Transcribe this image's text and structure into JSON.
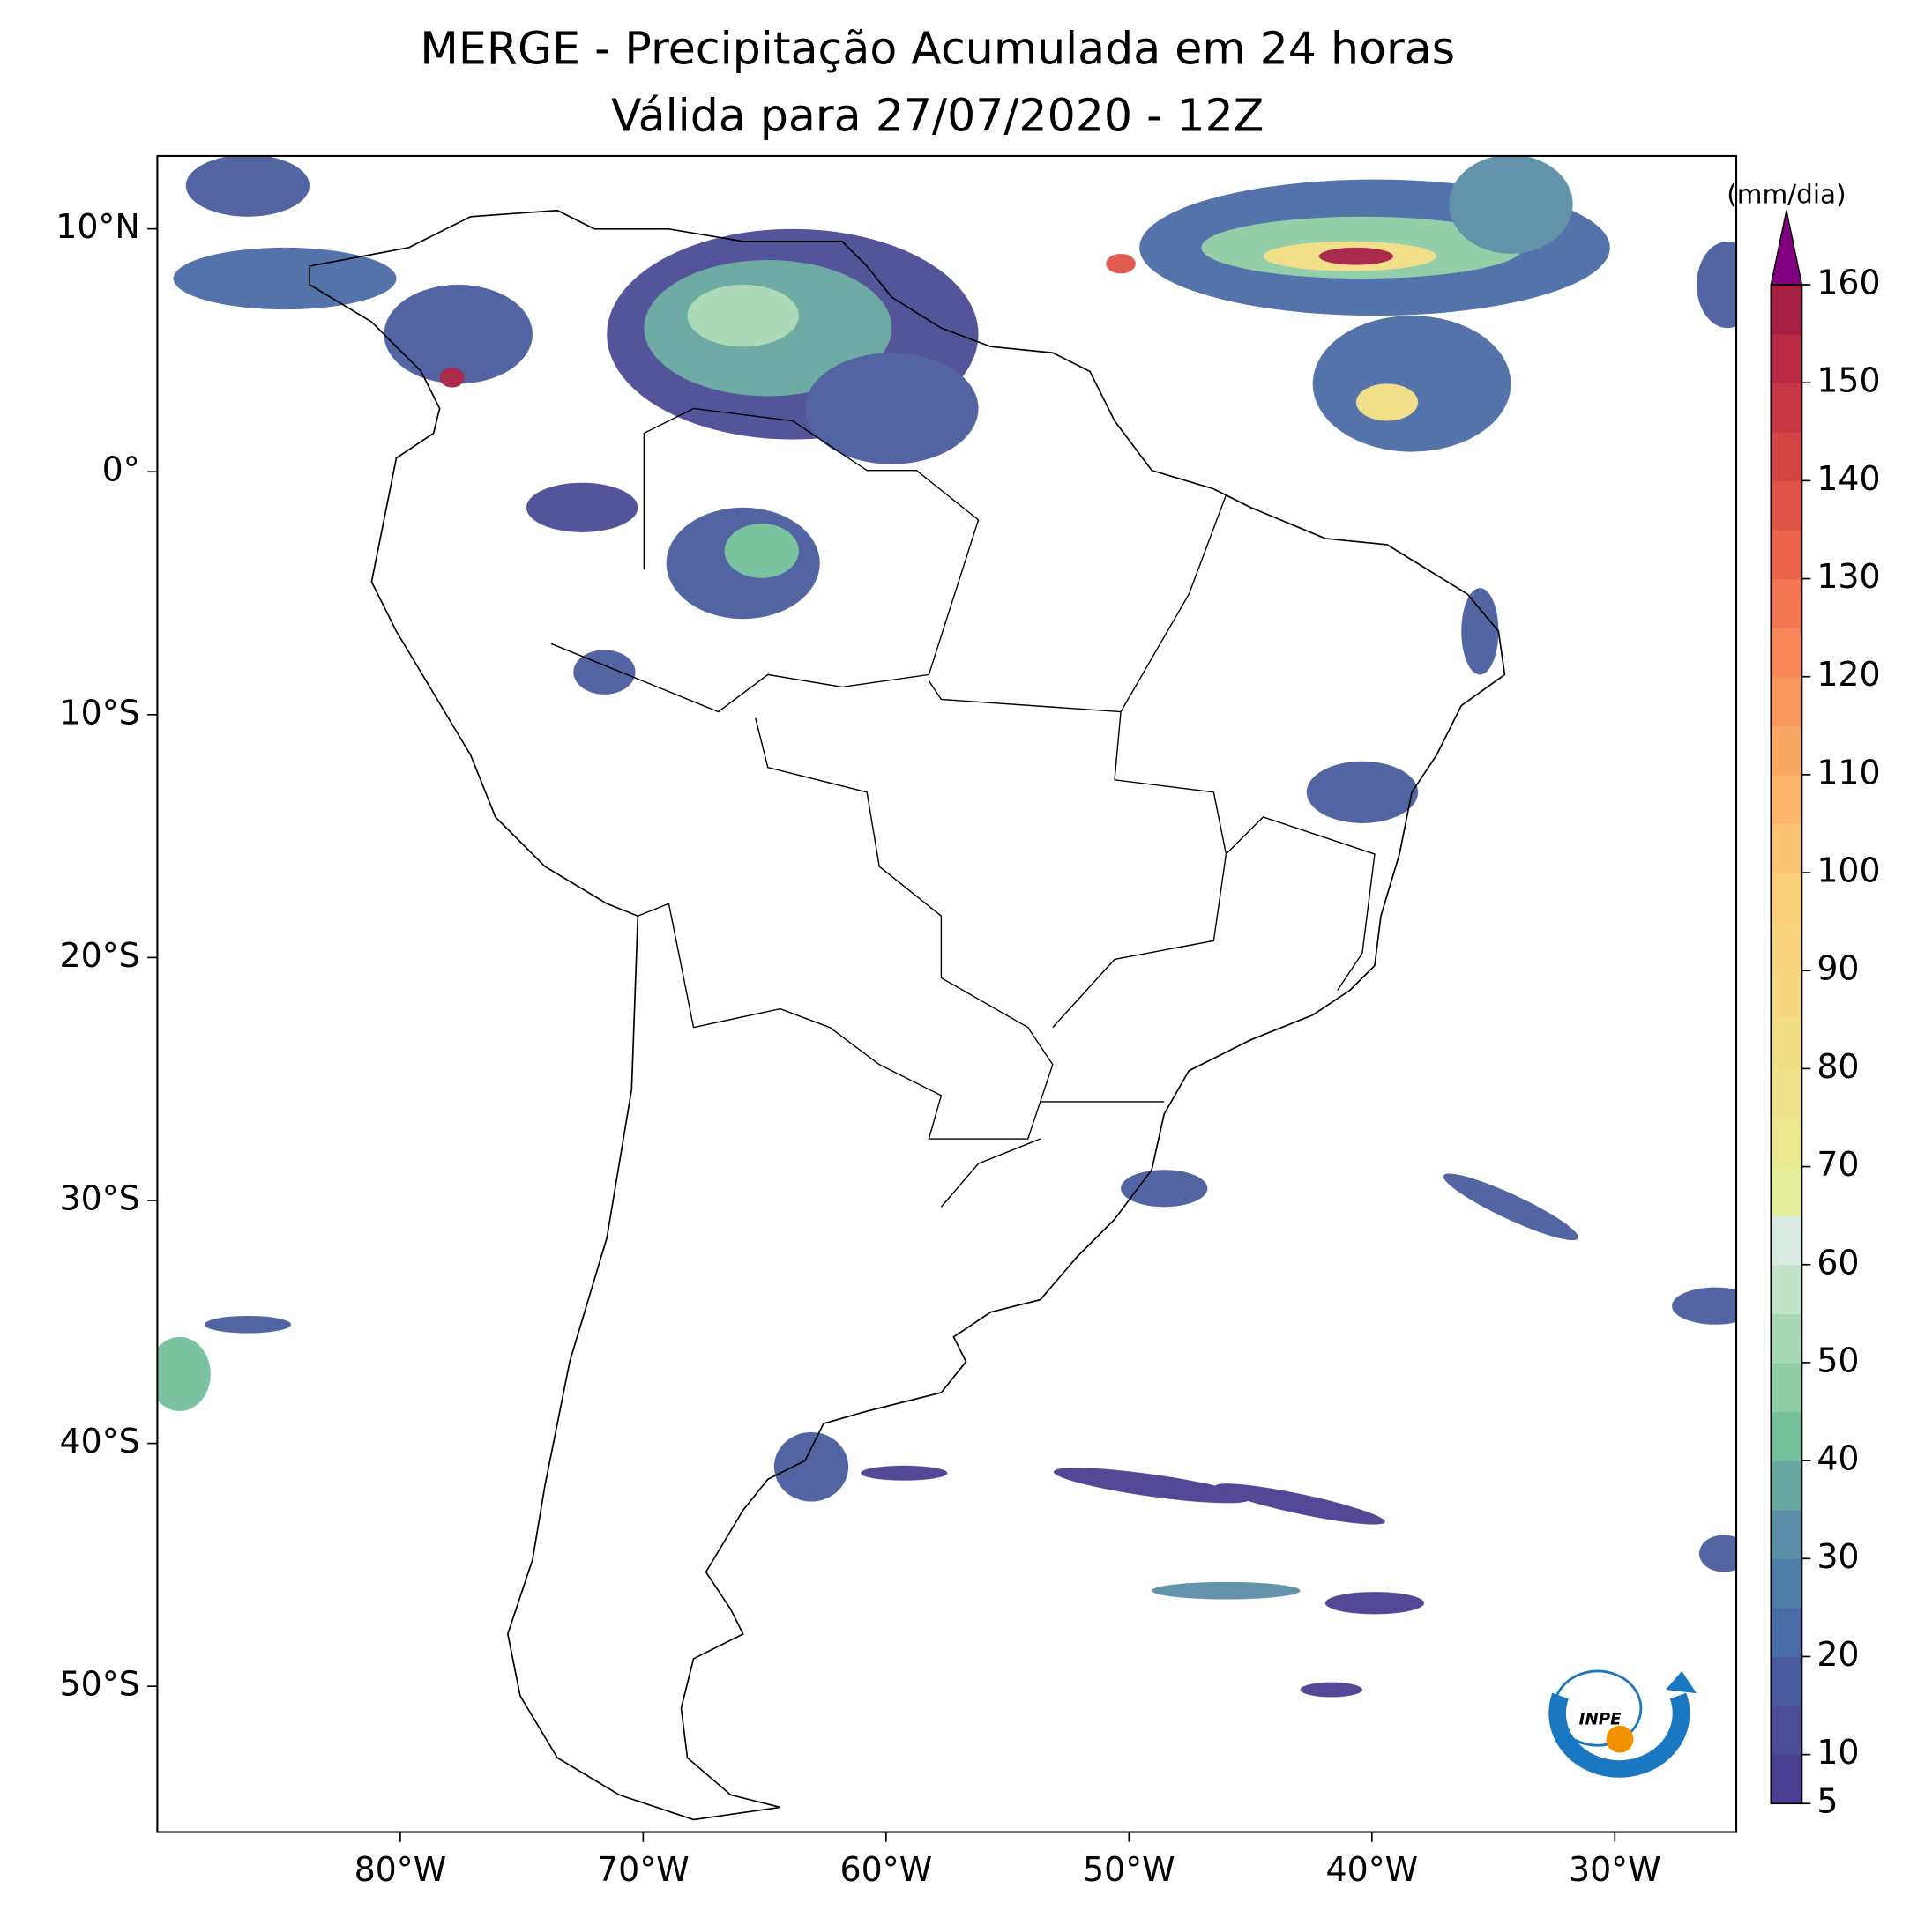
{
  "chart_data": {
    "type": "map",
    "title": "MERGE - Precipitação Acumulada em 24 horas",
    "subtitle": "Válida para 27/07/2020 - 12Z",
    "xlim": [
      -90,
      -25
    ],
    "ylim": [
      -56,
      13
    ],
    "xticks": [
      {
        "value": -80,
        "label": "80°W"
      },
      {
        "value": -70,
        "label": "70°W"
      },
      {
        "value": -60,
        "label": "60°W"
      },
      {
        "value": -50,
        "label": "50°W"
      },
      {
        "value": -40,
        "label": "40°W"
      },
      {
        "value": -30,
        "label": "30°W"
      }
    ],
    "yticks": [
      {
        "value": 10,
        "label": "10°N"
      },
      {
        "value": 0,
        "label": "0°"
      },
      {
        "value": -10,
        "label": "10°S"
      },
      {
        "value": -20,
        "label": "20°S"
      },
      {
        "value": -30,
        "label": "30°S"
      },
      {
        "value": -40,
        "label": "40°S"
      },
      {
        "value": -50,
        "label": "50°S"
      }
    ],
    "colorbar": {
      "label": "(mm/dia)",
      "lim": [
        5,
        160
      ],
      "ticks": [
        5,
        10,
        20,
        30,
        40,
        50,
        60,
        70,
        80,
        90,
        100,
        110,
        120,
        130,
        140,
        150,
        160
      ],
      "colors": [
        "#4a3f91",
        "#4b4b96",
        "#4a5c9f",
        "#4a6ca6",
        "#4f7da8",
        "#5a8ea6",
        "#67a7a0",
        "#74bf9c",
        "#8fcda6",
        "#a8d8b4",
        "#c2e3c9",
        "#d9ebe3",
        "#e4ee9a",
        "#ebe98f",
        "#eee38a",
        "#f2de84",
        "#f5d981",
        "#f8d47f",
        "#fad17a",
        "#fbc474",
        "#fbb56d",
        "#f9a765",
        "#f8985f",
        "#f68758",
        "#f37552",
        "#ea644c",
        "#e05447",
        "#d44545",
        "#c73644",
        "#b82944",
        "#a51f44"
      ],
      "extend_color": "#800080"
    }
  }
}
